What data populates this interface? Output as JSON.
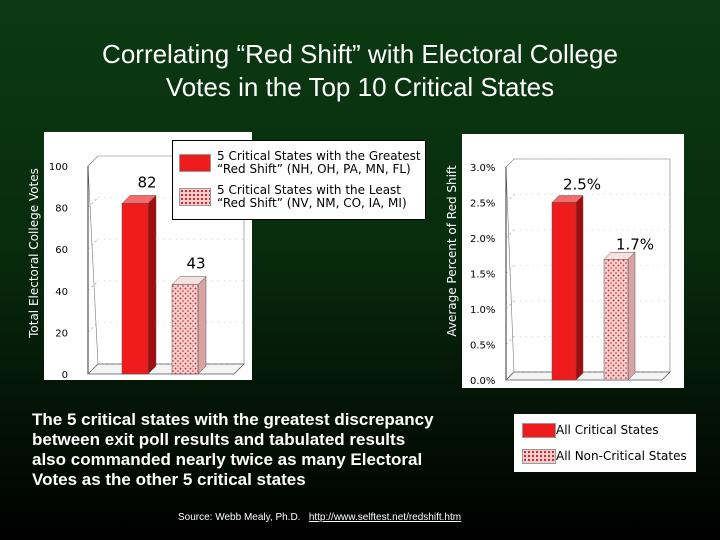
{
  "title": {
    "line1": "Correlating “Red Shift” with Electoral College",
    "line2": "Votes in the Top 10 Critical States"
  },
  "colors": {
    "critical": "#ee1c1c",
    "noncritical": "#f3cfcf",
    "background": "#0b3a12"
  },
  "legend": {
    "critical_line1": "5 Critical States with the Greatest",
    "critical_line2": "“Red Shift” (NH, OH, PA, MN, FL)",
    "noncritical_line1": "5 Critical States with the Least",
    "noncritical_line2": "“Red Shift” (NV, NM, CO, IA, MI)"
  },
  "chart_data": [
    {
      "type": "bar",
      "ylabel": "Total Electoral College Votes",
      "categories": [
        "5 Critical States with the Greatest “Red Shift” (NH, OH, PA, MN, FL)",
        "5 Critical States with the Least “Red Shift” (NV, NM, CO, IA, MI)"
      ],
      "values": [
        82,
        43
      ],
      "value_labels": [
        "82",
        "43"
      ],
      "ylim": [
        0,
        100
      ],
      "yticks": [
        0,
        20,
        40,
        60,
        80,
        100
      ],
      "ytick_labels": [
        "0",
        "20",
        "40",
        "60",
        "80",
        "100"
      ]
    },
    {
      "type": "bar",
      "ylabel": "Average Percent of Red Shift",
      "categories": [
        "All Critical States",
        "All Non-Critical States"
      ],
      "values": [
        2.5,
        1.7
      ],
      "value_labels": [
        "2.5%",
        "1.7%"
      ],
      "ylim": [
        0,
        3.0
      ],
      "yticks": [
        0,
        0.5,
        1.0,
        1.5,
        2.0,
        2.5,
        3.0
      ],
      "ytick_labels": [
        "0.0%",
        "0.5%",
        "1.0%",
        "1.5%",
        "2.0%",
        "2.5%",
        "3.0%"
      ]
    }
  ],
  "legend2": {
    "critical": "All Critical States",
    "noncritical": "All Non-Critical States"
  },
  "body": {
    "line1": "The 5 critical states with the greatest discrepancy",
    "line2": "between exit poll results and tabulated results",
    "line3": "also commanded nearly twice as many Electoral",
    "line4": "Votes as the other 5 critical states"
  },
  "source": {
    "label": "Source:  Webb Mealy, Ph.D.",
    "link": "http://www.selftest.net/redshift.htm"
  }
}
